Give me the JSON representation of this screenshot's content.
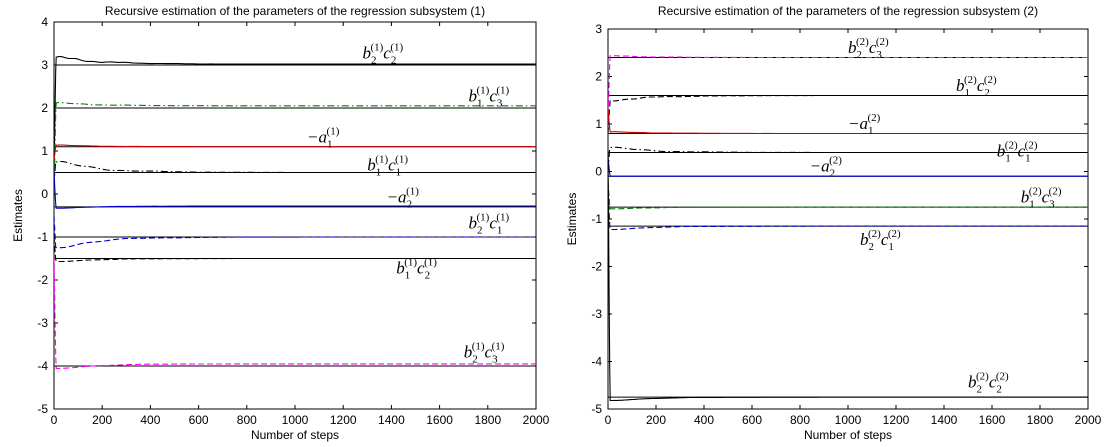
{
  "chart_data": [
    {
      "type": "line",
      "title": "Recursive estimation of the parameters of the regression subsystem (1)",
      "xlabel": "Number of steps",
      "ylabel": "Estimates",
      "xlim": [
        0,
        2000
      ],
      "ylim": [
        -5,
        4
      ],
      "xticks": [
        "0",
        "200",
        "400",
        "600",
        "800",
        "1000",
        "1200",
        "1400",
        "1600",
        "1800",
        "2000"
      ],
      "yticks": [
        "-5",
        "-4",
        "-3",
        "-2",
        "-1",
        "0",
        "1",
        "2",
        "3",
        "4"
      ],
      "grid": false,
      "legend": "none",
      "true_values": [
        3.0,
        2.0,
        1.1,
        0.5,
        -0.3,
        -1.0,
        -1.5,
        -4.0
      ],
      "series": [
        {
          "color": "#000000",
          "dash": "solid",
          "start": 0.5,
          "overshoot": 3.25,
          "final": 3.02
        },
        {
          "color": "#008000",
          "dash": "dashdot",
          "start": 0.0,
          "overshoot": 2.15,
          "final": 2.05
        },
        {
          "color": "#cc0000",
          "dash": "solid",
          "start": 0.8,
          "overshoot": 1.15,
          "final": 1.1
        },
        {
          "color": "#000000",
          "dash": "dashdot",
          "start": 0.2,
          "overshoot": 0.85,
          "final": 0.5
        },
        {
          "color": "#0000cc",
          "dash": "solid",
          "start": 0.5,
          "overshoot": -0.35,
          "final": -0.28
        },
        {
          "color": "#0000cc",
          "dash": "dashed",
          "start": -0.5,
          "overshoot": -1.35,
          "final": -1.0
        },
        {
          "color": "#000000",
          "dash": "dashed",
          "start": -1.0,
          "overshoot": -1.6,
          "final": -1.5
        },
        {
          "color": "#ff00ff",
          "dash": "dashed",
          "start": -1.5,
          "overshoot": -4.1,
          "final": -3.95
        }
      ],
      "annotations": [
        {
          "coef1": "b",
          "sub1": "2",
          "sup1": "(1)",
          "coef2": "c",
          "sub2": "2",
          "sup2": "(1)",
          "x": 1280,
          "y": 3.15
        },
        {
          "coef1": "b",
          "sub1": "1",
          "sup1": "(1)",
          "coef2": "c",
          "sub2": "3",
          "sup2": "(1)",
          "x": 1720,
          "y": 2.15
        },
        {
          "coef1": "−a",
          "sub1": "1",
          "sup1": "(1)",
          "coef2": "",
          "sub2": "",
          "sup2": "",
          "x": 1050,
          "y": 1.2
        },
        {
          "coef1": "b",
          "sub1": "1",
          "sup1": "(1)",
          "coef2": "c",
          "sub2": "1",
          "sup2": "(1)",
          "x": 1300,
          "y": 0.55
        },
        {
          "coef1": "−a",
          "sub1": "2",
          "sup1": "(1)",
          "coef2": "",
          "sub2": "",
          "sup2": "",
          "x": 1380,
          "y": -0.2
        },
        {
          "coef1": "b",
          "sub1": "2",
          "sup1": "(1)",
          "coef2": "c",
          "sub2": "1",
          "sup2": "(1)",
          "x": 1720,
          "y": -0.8
        },
        {
          "coef1": "b",
          "sub1": "1",
          "sup1": "(1)",
          "coef2": "c",
          "sub2": "2",
          "sup2": "(1)",
          "x": 1420,
          "y": -1.85
        },
        {
          "coef1": "b",
          "sub1": "2",
          "sup1": "(1)",
          "coef2": "c",
          "sub2": "3",
          "sup2": "(1)",
          "x": 1700,
          "y": -3.8
        }
      ]
    },
    {
      "type": "line",
      "title": "Recursive estimation of the parameters of the regression subsystem (2)",
      "xlabel": "Number of steps",
      "ylabel": "Estimates",
      "xlim": [
        0,
        2000
      ],
      "ylim": [
        -5,
        3
      ],
      "xticks": [
        "0",
        "200",
        "400",
        "600",
        "800",
        "1000",
        "1200",
        "1400",
        "1600",
        "1800",
        "2000"
      ],
      "yticks": [
        "-5",
        "-4",
        "-3",
        "-2",
        "-1",
        "0",
        "1",
        "2",
        "3"
      ],
      "grid": false,
      "legend": "none",
      "true_values": [
        2.4,
        1.6,
        0.8,
        0.4,
        -0.1,
        -0.75,
        -1.15,
        -4.75
      ],
      "series": [
        {
          "color": "#ff00ff",
          "dash": "dashed",
          "start": 1.0,
          "overshoot": 2.45,
          "final": 2.4
        },
        {
          "color": "#000000",
          "dash": "dashed",
          "start": 0.8,
          "overshoot": 1.45,
          "final": 1.6
        },
        {
          "color": "#cc0000",
          "dash": "solid",
          "start": 1.3,
          "overshoot": 0.85,
          "final": 0.8
        },
        {
          "color": "#000000",
          "dash": "dashdot",
          "start": 0.0,
          "overshoot": 0.55,
          "final": 0.4
        },
        {
          "color": "#0000cc",
          "dash": "solid",
          "start": 0.3,
          "overshoot": -0.1,
          "final": -0.1
        },
        {
          "color": "#008000",
          "dash": "dashed",
          "start": -0.2,
          "overshoot": -0.8,
          "final": -0.75
        },
        {
          "color": "#0000cc",
          "dash": "dashed",
          "start": -0.3,
          "overshoot": -1.25,
          "final": -1.15
        },
        {
          "color": "#000000",
          "dash": "solid",
          "start": 0.5,
          "overshoot": -4.85,
          "final": -4.75
        }
      ],
      "annotations": [
        {
          "coef1": "b",
          "sub1": "2",
          "sup1": "(2)",
          "coef2": "c",
          "sub2": "3",
          "sup2": "(2)",
          "x": 1000,
          "y": 2.5
        },
        {
          "coef1": "b",
          "sub1": "1",
          "sup1": "(2)",
          "coef2": "c",
          "sub2": "2",
          "sup2": "(2)",
          "x": 1450,
          "y": 1.7
        },
        {
          "coef1": "−a",
          "sub1": "1",
          "sup1": "(2)",
          "coef2": "",
          "sub2": "",
          "sup2": "",
          "x": 1000,
          "y": 0.9
        },
        {
          "coef1": "b",
          "sub1": "1",
          "sup1": "(2)",
          "coef2": "c",
          "sub2": "1",
          "sup2": "(2)",
          "x": 1620,
          "y": 0.32
        },
        {
          "coef1": "−a",
          "sub1": "2",
          "sup1": "(2)",
          "coef2": "",
          "sub2": "",
          "sup2": "",
          "x": 840,
          "y": 0.0
        },
        {
          "coef1": "b",
          "sub1": "1",
          "sup1": "(2)",
          "coef2": "c",
          "sub2": "3",
          "sup2": "(2)",
          "x": 1720,
          "y": -0.65
        },
        {
          "coef1": "b",
          "sub1": "2",
          "sup1": "(2)",
          "coef2": "c",
          "sub2": "1",
          "sup2": "(2)",
          "x": 1050,
          "y": -1.55
        },
        {
          "coef1": "b",
          "sub1": "2",
          "sup1": "(2)",
          "coef2": "c",
          "sub2": "2",
          "sup2": "(2)",
          "x": 1500,
          "y": -4.55
        }
      ]
    }
  ]
}
